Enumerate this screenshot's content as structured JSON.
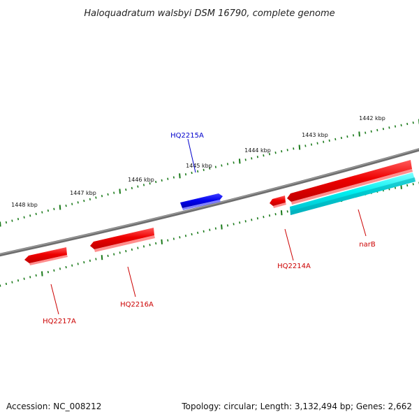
{
  "title": "Haloquadratum walsbyi DSM 16790, complete genome",
  "footer": {
    "accession": "Accession: NC_008212",
    "summary": "Topology: circular; Length: 3,132,494 bp; Genes: 2,662"
  },
  "scale_labels": [
    "1442 kbp",
    "1443 kbp",
    "1444 kbp",
    "1445 kbp",
    "1446 kbp",
    "1447 kbp",
    "1448 kbp"
  ],
  "genes": [
    {
      "name": "HQ2215A",
      "strand": "forward",
      "color": "#0000e6"
    },
    {
      "name": "HQ2214A",
      "strand": "reverse",
      "color": "#e60000"
    },
    {
      "name": "narB",
      "strand": "reverse",
      "color": "#00e6e6"
    },
    {
      "name": "HQ2216A",
      "strand": "reverse",
      "color": "#e60000"
    },
    {
      "name": "HQ2217A",
      "strand": "reverse",
      "color": "#e60000"
    }
  ],
  "colors": {
    "backbone": "#808080",
    "ticks": "#1a7a1a",
    "forward_gene": "#0000e6",
    "reverse_gene": "#e60000",
    "narB_gene": "#00e6e6"
  }
}
